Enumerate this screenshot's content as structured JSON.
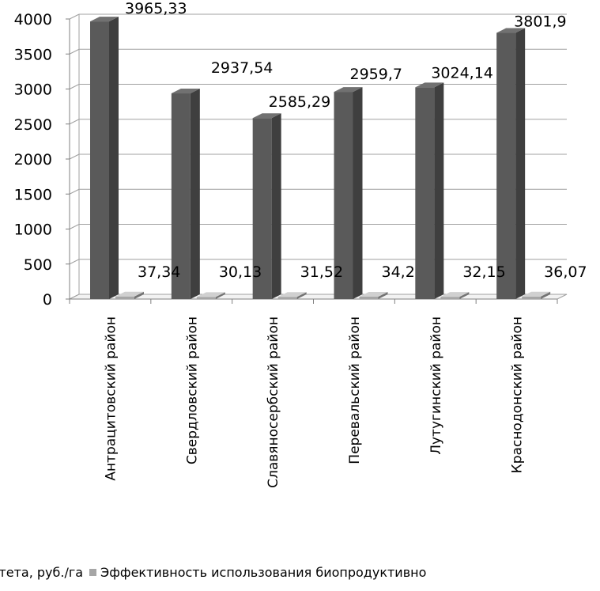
{
  "chart_data": {
    "type": "bar",
    "categories": [
      "Антрацитовский район",
      "Свердловский район",
      "Славяносербский район",
      "Перевальский район",
      "Лутугинский район",
      "Краснодонский район"
    ],
    "series": [
      {
        "name": "итета, руб./га",
        "values": [
          3965.33,
          2937.54,
          2585.29,
          2959.7,
          3024.14,
          3801.9
        ],
        "labels": [
          "3965,33",
          "2937,54",
          "2585,29",
          "2959,7",
          "3024,14",
          "3801,9"
        ],
        "color": "#5a5a5a"
      },
      {
        "name": "Эффективность использования биопродуктивно",
        "values": [
          37.34,
          30.13,
          31.52,
          34.2,
          32.15,
          36.07
        ],
        "labels": [
          "37,34",
          "30,13",
          "31,52",
          "34,2",
          "32,15",
          "36,07"
        ],
        "color": "#a6a6a6"
      }
    ],
    "ylim": [
      0,
      4000
    ],
    "yticks": [
      "0",
      "500",
      "1000",
      "1500",
      "2000",
      "2500",
      "3000",
      "3500",
      "4000"
    ],
    "grid": true,
    "legend_position": "bottom"
  }
}
